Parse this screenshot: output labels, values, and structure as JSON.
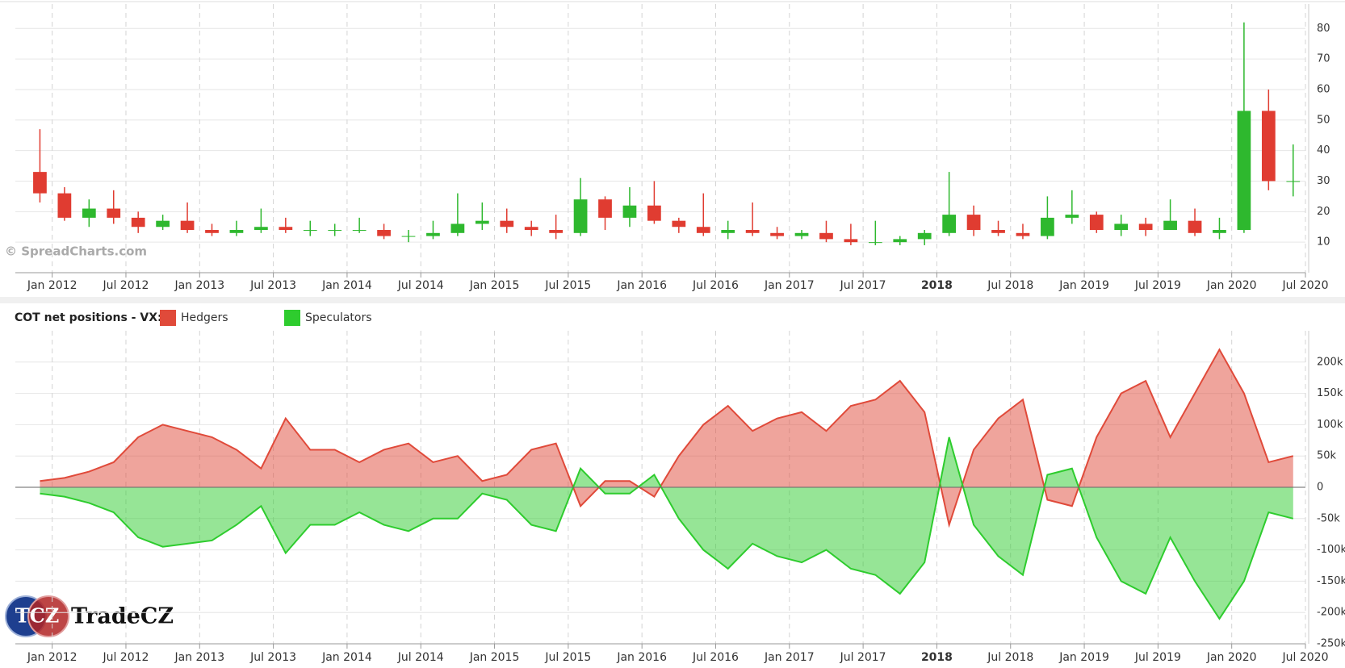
{
  "chart_data": [
    {
      "type": "candlestick",
      "x": [
        "2011-12",
        "2012-02",
        "2012-04",
        "2012-06",
        "2012-08",
        "2012-10",
        "2012-12",
        "2013-02",
        "2013-04",
        "2013-06",
        "2013-08",
        "2013-10",
        "2013-12",
        "2014-02",
        "2014-04",
        "2014-06",
        "2014-08",
        "2014-10",
        "2014-12",
        "2015-02",
        "2015-04",
        "2015-06",
        "2015-08",
        "2015-10",
        "2015-12",
        "2016-02",
        "2016-04",
        "2016-06",
        "2016-08",
        "2016-10",
        "2016-12",
        "2017-02",
        "2017-04",
        "2017-06",
        "2017-08",
        "2017-10",
        "2017-12",
        "2018-02",
        "2018-04",
        "2018-06",
        "2018-08",
        "2018-10",
        "2018-12",
        "2019-02",
        "2019-04",
        "2019-06",
        "2019-08",
        "2019-10",
        "2019-12",
        "2020-02",
        "2020-04",
        "2020-06"
      ],
      "open": [
        33,
        26,
        18,
        21,
        18,
        15,
        17,
        14,
        13,
        14,
        15,
        14,
        14,
        14,
        14,
        12,
        12,
        13,
        16,
        17,
        15,
        14,
        13,
        24,
        18,
        22,
        17,
        15,
        13,
        14,
        13,
        12,
        13,
        11,
        10,
        10,
        11,
        13,
        19,
        14,
        13,
        12,
        18,
        19,
        14,
        16,
        14,
        17,
        13,
        14,
        53,
        30
      ],
      "high": [
        47,
        28,
        24,
        27,
        20,
        19,
        23,
        16,
        17,
        21,
        18,
        17,
        16,
        18,
        16,
        14,
        17,
        26,
        23,
        21,
        17,
        19,
        31,
        25,
        28,
        30,
        18,
        26,
        17,
        23,
        15,
        14,
        17,
        16,
        17,
        12,
        14,
        33,
        22,
        17,
        16,
        25,
        27,
        20,
        19,
        18,
        24,
        21,
        18,
        82,
        60,
        42
      ],
      "low": [
        23,
        17,
        15,
        16,
        13,
        14,
        13,
        12,
        12,
        13,
        13,
        12,
        12,
        13,
        11,
        10,
        11,
        12,
        14,
        13,
        12,
        11,
        12,
        14,
        15,
        16,
        13,
        12,
        11,
        12,
        11,
        11,
        10,
        9,
        9,
        9,
        9,
        12,
        12,
        12,
        11,
        11,
        16,
        13,
        12,
        12,
        14,
        12,
        11,
        13,
        27,
        25
      ],
      "close": [
        26,
        18,
        21,
        18,
        15,
        17,
        14,
        13,
        14,
        15,
        14,
        14,
        14,
        14,
        12,
        12,
        13,
        16,
        17,
        15,
        14,
        13,
        24,
        18,
        22,
        17,
        15,
        13,
        14,
        13,
        12,
        13,
        11,
        10,
        10,
        11,
        13,
        19,
        14,
        13,
        12,
        18,
        19,
        14,
        16,
        14,
        17,
        13,
        14,
        53,
        30,
        30
      ],
      "up_color": "#2eb82e",
      "down_color": "#e03c31",
      "xlim": [
        "2011-10",
        "2020-07"
      ],
      "xticks": [
        {
          "value": "2012-01",
          "label": "Jan 2012"
        },
        {
          "value": "2012-07",
          "label": "Jul 2012"
        },
        {
          "value": "2013-01",
          "label": "Jan 2013"
        },
        {
          "value": "2013-07",
          "label": "Jul 2013"
        },
        {
          "value": "2014-01",
          "label": "Jan 2014"
        },
        {
          "value": "2014-07",
          "label": "Jul 2014"
        },
        {
          "value": "2015-01",
          "label": "Jan 2015"
        },
        {
          "value": "2015-07",
          "label": "Jul 2015"
        },
        {
          "value": "2016-01",
          "label": "Jan 2016"
        },
        {
          "value": "2016-07",
          "label": "Jul 2016"
        },
        {
          "value": "2017-01",
          "label": "Jan 2017"
        },
        {
          "value": "2017-07",
          "label": "Jul 2017"
        },
        {
          "value": "2018-01",
          "label": "2018"
        },
        {
          "value": "2018-07",
          "label": "Jul 2018"
        },
        {
          "value": "2019-01",
          "label": "Jan 2019"
        },
        {
          "value": "2019-07",
          "label": "Jul 2019"
        },
        {
          "value": "2020-01",
          "label": "Jan 2020"
        },
        {
          "value": "2020-07",
          "label": "Jul 2020"
        }
      ],
      "ylim": [
        0,
        88
      ],
      "yticks": [
        10,
        20,
        30,
        40,
        50,
        60,
        70,
        80
      ],
      "grid": true
    },
    {
      "type": "area",
      "legend_title": "COT net positions - VX:",
      "x": [
        "2011-12",
        "2012-02",
        "2012-04",
        "2012-06",
        "2012-08",
        "2012-10",
        "2012-12",
        "2013-02",
        "2013-04",
        "2013-06",
        "2013-08",
        "2013-10",
        "2013-12",
        "2014-02",
        "2014-04",
        "2014-06",
        "2014-08",
        "2014-10",
        "2014-12",
        "2015-02",
        "2015-04",
        "2015-06",
        "2015-08",
        "2015-10",
        "2015-12",
        "2016-02",
        "2016-04",
        "2016-06",
        "2016-08",
        "2016-10",
        "2016-12",
        "2017-02",
        "2017-04",
        "2017-06",
        "2017-08",
        "2017-10",
        "2017-12",
        "2018-02",
        "2018-04",
        "2018-06",
        "2018-08",
        "2018-10",
        "2018-12",
        "2019-02",
        "2019-04",
        "2019-06",
        "2019-08",
        "2019-10",
        "2019-12",
        "2020-02",
        "2020-04",
        "2020-06"
      ],
      "series": [
        {
          "name": "Hedgers",
          "color": "#e04a3a",
          "values": [
            10000,
            15000,
            25000,
            40000,
            80000,
            100000,
            90000,
            80000,
            60000,
            30000,
            110000,
            60000,
            60000,
            40000,
            60000,
            70000,
            40000,
            50000,
            10000,
            20000,
            60000,
            70000,
            -30000,
            10000,
            10000,
            -15000,
            50000,
            100000,
            130000,
            90000,
            110000,
            120000,
            90000,
            130000,
            140000,
            170000,
            120000,
            -60000,
            60000,
            110000,
            140000,
            -20000,
            -30000,
            80000,
            150000,
            170000,
            80000,
            150000,
            220000,
            150000,
            40000,
            50000
          ]
        },
        {
          "name": "Speculators",
          "color": "#2ecc2e",
          "values": [
            -10000,
            -15000,
            -25000,
            -40000,
            -80000,
            -95000,
            -90000,
            -85000,
            -60000,
            -30000,
            -105000,
            -60000,
            -60000,
            -40000,
            -60000,
            -70000,
            -50000,
            -50000,
            -10000,
            -20000,
            -60000,
            -70000,
            30000,
            -10000,
            -10000,
            20000,
            -50000,
            -100000,
            -130000,
            -90000,
            -110000,
            -120000,
            -100000,
            -130000,
            -140000,
            -170000,
            -120000,
            80000,
            -60000,
            -110000,
            -140000,
            20000,
            30000,
            -80000,
            -150000,
            -170000,
            -80000,
            -150000,
            -210000,
            -150000,
            -40000,
            -50000
          ]
        }
      ],
      "xlim": [
        "2011-10",
        "2020-07"
      ],
      "xticks": [
        {
          "value": "2012-01",
          "label": "Jan 2012"
        },
        {
          "value": "2012-07",
          "label": "Jul 2012"
        },
        {
          "value": "2013-01",
          "label": "Jan 2013"
        },
        {
          "value": "2013-07",
          "label": "Jul 2013"
        },
        {
          "value": "2014-01",
          "label": "Jan 2014"
        },
        {
          "value": "2014-07",
          "label": "Jul 2014"
        },
        {
          "value": "2015-01",
          "label": "Jan 2015"
        },
        {
          "value": "2015-07",
          "label": "Jul 2015"
        },
        {
          "value": "2016-01",
          "label": "Jan 2016"
        },
        {
          "value": "2016-07",
          "label": "Jul 2016"
        },
        {
          "value": "2017-01",
          "label": "Jan 2017"
        },
        {
          "value": "2017-07",
          "label": "Jul 2017"
        },
        {
          "value": "2018-01",
          "label": "2018"
        },
        {
          "value": "2018-07",
          "label": "Jul 2018"
        },
        {
          "value": "2019-01",
          "label": "Jan 2019"
        },
        {
          "value": "2019-07",
          "label": "Jul 2019"
        },
        {
          "value": "2020-01",
          "label": "Jan 2020"
        },
        {
          "value": "2020-07",
          "label": "Jul 2020"
        }
      ],
      "ylim": [
        -250000,
        250000
      ],
      "yticks": [
        {
          "value": -250000,
          "label": "-250k"
        },
        {
          "value": -200000,
          "label": "-200k"
        },
        {
          "value": -150000,
          "label": "-150k"
        },
        {
          "value": -100000,
          "label": "-100k"
        },
        {
          "value": -50000,
          "label": "-50k"
        },
        0,
        {
          "value": 50000,
          "label": "50k"
        },
        {
          "value": 100000,
          "label": "100k"
        },
        {
          "value": 150000,
          "label": "150k"
        },
        {
          "value": 200000,
          "label": "200k"
        }
      ],
      "grid": true
    }
  ],
  "watermark": "© SpreadCharts.com",
  "logo": {
    "mark": "TCZ",
    "name": "TradeCZ"
  }
}
